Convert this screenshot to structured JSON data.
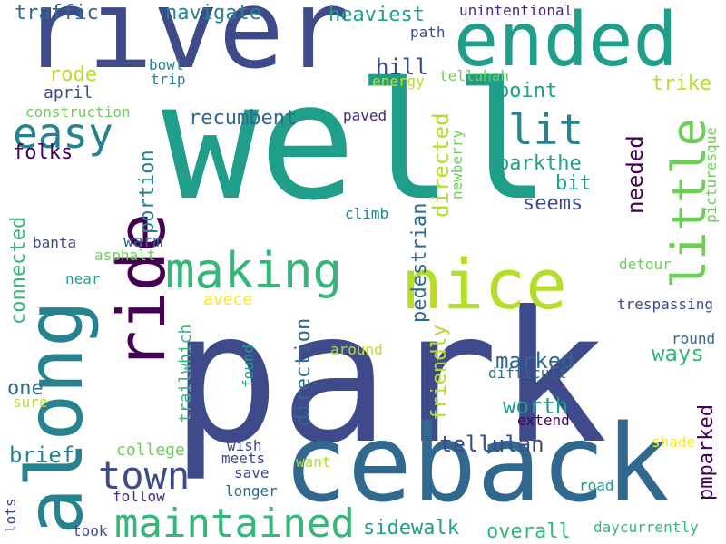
{
  "colors": {
    "background": "#ffffff",
    "palette": [
      "#440154",
      "#482878",
      "#3e4a89",
      "#31688e",
      "#26828e",
      "#1f9e89",
      "#35b779",
      "#6ece58",
      "#b5de2b",
      "#fde725"
    ]
  },
  "words": [
    {
      "text": "well",
      "color": "#1f9e89",
      "orientation": "horizontal"
    },
    {
      "text": "park",
      "color": "#3e4a89",
      "orientation": "horizontal"
    },
    {
      "text": "river",
      "color": "#3e4a89",
      "orientation": "horizontal"
    },
    {
      "text": "ceback",
      "color": "#31688e",
      "orientation": "horizontal"
    },
    {
      "text": "along",
      "color": "#26828e",
      "orientation": "vertical"
    },
    {
      "text": "ended",
      "color": "#1f9e89",
      "orientation": "horizontal"
    },
    {
      "text": "nice",
      "color": "#b5de2b",
      "orientation": "horizontal"
    },
    {
      "text": "ride",
      "color": "#440154",
      "orientation": "vertical"
    },
    {
      "text": "making",
      "color": "#35b779",
      "orientation": "horizontal"
    },
    {
      "text": "little",
      "color": "#6ece58",
      "orientation": "vertical"
    },
    {
      "text": "maintained",
      "color": "#35b779",
      "orientation": "horizontal"
    },
    {
      "text": "town",
      "color": "#3e4a89",
      "orientation": "horizontal"
    },
    {
      "text": "easy",
      "color": "#26828e",
      "orientation": "horizontal"
    },
    {
      "text": "lit",
      "color": "#26828e",
      "orientation": "horizontal"
    },
    {
      "text": "traffic",
      "color": "#31688e",
      "orientation": "horizontal"
    },
    {
      "text": "navigate",
      "color": "#26828e",
      "orientation": "horizontal"
    },
    {
      "text": "heaviest",
      "color": "#1f9e89",
      "orientation": "horizontal"
    },
    {
      "text": "unintentional",
      "color": "#482878",
      "orientation": "horizontal"
    },
    {
      "text": "path",
      "color": "#3e4a89",
      "orientation": "horizontal"
    },
    {
      "text": "hill",
      "color": "#3e4a89",
      "orientation": "horizontal"
    },
    {
      "text": "bowl",
      "color": "#26828e",
      "orientation": "horizontal"
    },
    {
      "text": "trip",
      "color": "#26828e",
      "orientation": "horizontal"
    },
    {
      "text": "telluhah",
      "color": "#6ece58",
      "orientation": "horizontal"
    },
    {
      "text": "energy",
      "color": "#b5de2b",
      "orientation": "horizontal"
    },
    {
      "text": "trike",
      "color": "#b5de2b",
      "orientation": "horizontal"
    },
    {
      "text": "rode",
      "color": "#b5de2b",
      "orientation": "horizontal"
    },
    {
      "text": "april",
      "color": "#3e4a89",
      "orientation": "horizontal"
    },
    {
      "text": "construction",
      "color": "#6ece58",
      "orientation": "horizontal"
    },
    {
      "text": "point",
      "color": "#1f9e89",
      "orientation": "horizontal"
    },
    {
      "text": "recumbent",
      "color": "#31688e",
      "orientation": "horizontal"
    },
    {
      "text": "paved",
      "color": "#482878",
      "orientation": "horizontal"
    },
    {
      "text": "folks",
      "color": "#440154",
      "orientation": "horizontal"
    },
    {
      "text": "parkthe",
      "color": "#1f9e89",
      "orientation": "horizontal"
    },
    {
      "text": "bit",
      "color": "#1f9e89",
      "orientation": "horizontal"
    },
    {
      "text": "seems",
      "color": "#3e4a89",
      "orientation": "horizontal"
    },
    {
      "text": "directed",
      "color": "#b5de2b",
      "orientation": "vertical"
    },
    {
      "text": "pedestrian",
      "color": "#31688e",
      "orientation": "vertical"
    },
    {
      "text": "needed",
      "color": "#440154",
      "orientation": "vertical"
    },
    {
      "text": "newberry",
      "color": "#6ece58",
      "orientation": "vertical"
    },
    {
      "text": "picturesque",
      "color": "#6ece58",
      "orientation": "vertical"
    },
    {
      "text": "portion",
      "color": "#26828e",
      "orientation": "vertical"
    },
    {
      "text": "connected",
      "color": "#35b779",
      "orientation": "vertical"
    },
    {
      "text": "climb",
      "color": "#26828e",
      "orientation": "horizontal"
    },
    {
      "text": "warm",
      "color": "#31688e",
      "orientation": "horizontal"
    },
    {
      "text": "banta",
      "color": "#3e4a89",
      "orientation": "horizontal"
    },
    {
      "text": "asphalt",
      "color": "#6ece58",
      "orientation": "horizontal"
    },
    {
      "text": "near",
      "color": "#1f9e89",
      "orientation": "horizontal"
    },
    {
      "text": "detour",
      "color": "#6ece58",
      "orientation": "horizontal"
    },
    {
      "text": "avece",
      "color": "#fde725",
      "orientation": "horizontal"
    },
    {
      "text": "trailwhich",
      "color": "#35b779",
      "orientation": "vertical"
    },
    {
      "text": "direction",
      "color": "#31688e",
      "orientation": "vertical"
    },
    {
      "text": "friendly",
      "color": "#b5de2b",
      "orientation": "vertical"
    },
    {
      "text": "trespassing",
      "color": "#3e4a89",
      "orientation": "horizontal"
    },
    {
      "text": "round",
      "color": "#31688e",
      "orientation": "horizontal"
    },
    {
      "text": "ways",
      "color": "#35b779",
      "orientation": "horizontal"
    },
    {
      "text": "marked",
      "color": "#31688e",
      "orientation": "horizontal"
    },
    {
      "text": "around",
      "color": "#b5de2b",
      "orientation": "horizontal"
    },
    {
      "text": "difficult",
      "color": "#31688e",
      "orientation": "horizontal"
    },
    {
      "text": "found",
      "color": "#1f9e89",
      "orientation": "vertical"
    },
    {
      "text": "one",
      "color": "#31688e",
      "orientation": "horizontal"
    },
    {
      "text": "sure",
      "color": "#b5de2b",
      "orientation": "horizontal"
    },
    {
      "text": "worth",
      "color": "#1f9e89",
      "orientation": "horizontal"
    },
    {
      "text": "extend",
      "color": "#440154",
      "orientation": "horizontal"
    },
    {
      "text": "tellulah",
      "color": "#3e4a89",
      "orientation": "horizontal"
    },
    {
      "text": "brief",
      "color": "#26828e",
      "orientation": "horizontal"
    },
    {
      "text": "college",
      "color": "#6ece58",
      "orientation": "horizontal"
    },
    {
      "text": "wish",
      "color": "#3e4a89",
      "orientation": "horizontal"
    },
    {
      "text": "meets",
      "color": "#3e4a89",
      "orientation": "horizontal"
    },
    {
      "text": "shade",
      "color": "#fde725",
      "orientation": "horizontal"
    },
    {
      "text": "pmparked",
      "color": "#440154",
      "orientation": "vertical"
    },
    {
      "text": "want",
      "color": "#b5de2b",
      "orientation": "horizontal"
    },
    {
      "text": "save",
      "color": "#3e4a89",
      "orientation": "horizontal"
    },
    {
      "text": "longer",
      "color": "#31688e",
      "orientation": "horizontal"
    },
    {
      "text": "follow",
      "color": "#482878",
      "orientation": "horizontal"
    },
    {
      "text": "road",
      "color": "#1f9e89",
      "orientation": "horizontal"
    },
    {
      "text": "lots",
      "color": "#3e4a89",
      "orientation": "vertical"
    },
    {
      "text": "took",
      "color": "#3e4a89",
      "orientation": "horizontal"
    },
    {
      "text": "sidewalk",
      "color": "#1f9e89",
      "orientation": "horizontal"
    },
    {
      "text": "overall",
      "color": "#35b779",
      "orientation": "horizontal"
    },
    {
      "text": "daycurrently",
      "color": "#35b779",
      "orientation": "horizontal"
    }
  ]
}
